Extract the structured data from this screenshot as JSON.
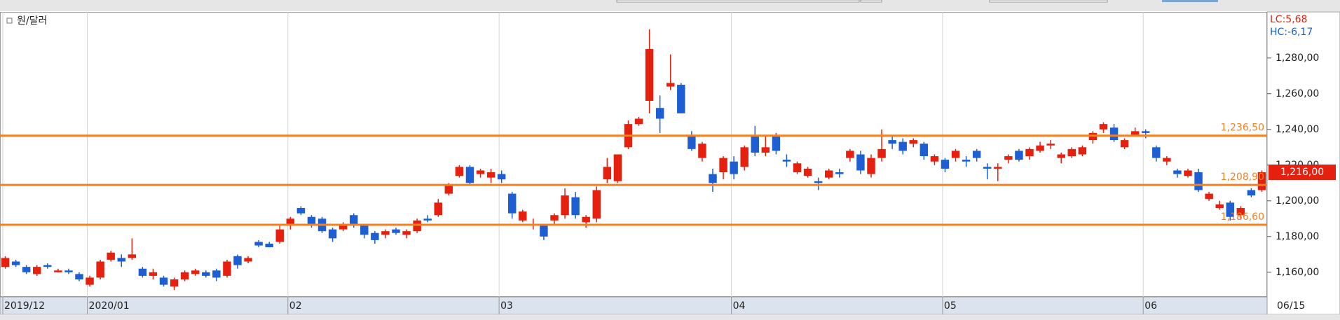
{
  "chart_data": {
    "type": "candlestick",
    "title": "원/달러",
    "lc_label": "LC:5,68",
    "hc_label": "HC:-6,17",
    "cursor_date": "06/15",
    "up_color": "#e5200f",
    "down_color": "#1d5fd2",
    "line_color": "#f5801f",
    "vgrid": true,
    "categories": [
      "2019/12",
      null,
      null,
      null,
      null,
      null,
      null,
      null,
      "2020/01",
      null,
      null,
      null,
      null,
      null,
      null,
      null,
      null,
      null,
      null,
      null,
      null,
      null,
      null,
      null,
      null,
      null,
      null,
      "02",
      null,
      null,
      null,
      null,
      null,
      null,
      null,
      null,
      null,
      null,
      null,
      null,
      null,
      null,
      null,
      null,
      null,
      null,
      null,
      "03",
      null,
      null,
      null,
      null,
      null,
      null,
      null,
      null,
      null,
      null,
      null,
      null,
      null,
      null,
      null,
      null,
      null,
      null,
      null,
      null,
      null,
      "04",
      null,
      null,
      null,
      null,
      null,
      null,
      null,
      null,
      null,
      null,
      null,
      null,
      null,
      null,
      null,
      null,
      null,
      null,
      null,
      "05",
      null,
      null,
      null,
      null,
      null,
      null,
      null,
      null,
      null,
      null,
      null,
      null,
      null,
      null,
      null,
      null,
      null,
      null,
      "06",
      null,
      null,
      null,
      null,
      null,
      null,
      null,
      null,
      null,
      null,
      null
    ],
    "open": [
      1163,
      1166,
      1163,
      1159,
      1164,
      1160,
      1161,
      1159,
      1153,
      1157,
      1167,
      1168,
      1168,
      1162,
      1158,
      1157,
      1152,
      1156,
      1159,
      1160,
      1161,
      1158,
      1169,
      1166,
      1177,
      1176,
      1177,
      1186,
      1196,
      1191,
      1190,
      1184,
      1184,
      1192,
      1186,
      1182,
      1181,
      1184,
      1181,
      1183,
      1190,
      1192,
      1204,
      1214,
      1219,
      1215,
      1213,
      1215,
      1204,
      1189,
      1186,
      1186,
      1189,
      1192,
      1202,
      1188,
      1190,
      1212,
      1211,
      1230,
      1243,
      1256,
      1252,
      1264,
      1265,
      1237,
      1224,
      1215,
      1216,
      1222,
      1219,
      1236,
      1227,
      1236,
      1223,
      1216,
      1214,
      1211,
      1213,
      1216,
      1224,
      1226,
      1215,
      1224,
      1234,
      1233,
      1232,
      1232,
      1222,
      1223,
      1224,
      1223,
      1228,
      1219,
      1218,
      1223,
      1228,
      1225,
      1228,
      1231,
      1224,
      1225,
      1226,
      1234,
      1240,
      1241,
      1230,
      1237,
      1239,
      1230,
      1222,
      1217,
      1214,
      1216,
      1201,
      1196,
      1199,
      1192,
      1206,
      1206
    ],
    "high": [
      1169,
      1167,
      1164,
      1164,
      1165,
      1162,
      1162,
      1160,
      1158,
      1167,
      1172,
      1170,
      1179,
      1163,
      1162,
      1158,
      1157,
      1161,
      1162,
      1161,
      1162,
      1167,
      1170,
      1169,
      1178,
      1177,
      1186,
      1191,
      1197,
      1192,
      1191,
      1185,
      1188,
      1193,
      1187,
      1183,
      1184,
      1185,
      1184,
      1190,
      1192,
      1201,
      1210,
      1220,
      1220,
      1218,
      1218,
      1217,
      1205,
      1195,
      1190,
      1187,
      1193,
      1207,
      1205,
      1192,
      1208,
      1224,
      1226,
      1245,
      1247,
      1296,
      1259,
      1282,
      1266,
      1239,
      1233,
      1218,
      1225,
      1225,
      1231,
      1242,
      1236,
      1238,
      1226,
      1222,
      1219,
      1213,
      1218,
      1218,
      1229,
      1228,
      1226,
      1240,
      1237,
      1235,
      1235,
      1233,
      1226,
      1224,
      1229,
      1225,
      1229,
      1221,
      1221,
      1226,
      1229,
      1230,
      1233,
      1234,
      1227,
      1230,
      1231,
      1239,
      1244,
      1243,
      1235,
      1241,
      1240,
      1231,
      1225,
      1218,
      1218,
      1218,
      1205,
      1200,
      1200,
      1197,
      1207,
      1217
    ],
    "low": [
      1162,
      1163,
      1159,
      1158,
      1162,
      1160,
      1159,
      1155,
      1152,
      1156,
      1166,
      1163,
      1167,
      1157,
      1156,
      1152,
      1150,
      1155,
      1158,
      1157,
      1155,
      1157,
      1162,
      1165,
      1174,
      1174,
      1176,
      1184,
      1192,
      1185,
      1182,
      1177,
      1183,
      1185,
      1179,
      1176,
      1179,
      1181,
      1179,
      1182,
      1188,
      1191,
      1203,
      1213,
      1209,
      1213,
      1210,
      1210,
      1190,
      1188,
      1184,
      1178,
      1187,
      1190,
      1190,
      1185,
      1188,
      1210,
      1210,
      1229,
      1242,
      1249,
      1238,
      1262,
      1249,
      1228,
      1222,
      1205,
      1212,
      1212,
      1217,
      1225,
      1225,
      1226,
      1219,
      1215,
      1213,
      1206,
      1212,
      1213,
      1222,
      1215,
      1213,
      1222,
      1229,
      1226,
      1230,
      1223,
      1220,
      1216,
      1222,
      1219,
      1222,
      1212,
      1211,
      1221,
      1222,
      1223,
      1227,
      1229,
      1221,
      1224,
      1225,
      1232,
      1238,
      1233,
      1229,
      1236,
      1235,
      1222,
      1220,
      1213,
      1213,
      1205,
      1200,
      1195,
      1189,
      1190,
      1202,
      1205
    ],
    "close": [
      1168,
      1164,
      1160,
      1163,
      1163,
      1161,
      1160,
      1156,
      1157,
      1166,
      1171,
      1166,
      1170,
      1158,
      1160,
      1153,
      1156,
      1160,
      1161,
      1158,
      1157,
      1166,
      1164,
      1168,
      1175,
      1174,
      1184,
      1190,
      1193,
      1187,
      1183,
      1179,
      1187,
      1187,
      1181,
      1178,
      1183,
      1182,
      1183,
      1189,
      1189,
      1199,
      1209,
      1219,
      1210,
      1217,
      1216,
      1212,
      1193,
      1194,
      1187,
      1180,
      1192,
      1203,
      1192,
      1191,
      1206,
      1219,
      1226,
      1243,
      1246,
      1285,
      1246,
      1266,
      1249,
      1229,
      1232,
      1210,
      1224,
      1215,
      1230,
      1227,
      1230,
      1228,
      1222,
      1221,
      1218,
      1210,
      1217,
      1215,
      1228,
      1217,
      1224,
      1229,
      1232,
      1228,
      1234,
      1225,
      1225,
      1218,
      1228,
      1222,
      1224,
      1218,
      1219,
      1225,
      1223,
      1229,
      1231,
      1232,
      1226,
      1229,
      1230,
      1238,
      1243,
      1234,
      1234,
      1239,
      1238,
      1224,
      1224,
      1215,
      1217,
      1206,
      1204,
      1198,
      1191,
      1196,
      1203,
      1216
    ],
    "ylim": [
      1146.2,
      1305.8
    ],
    "yticks": [
      {
        "value": 1160,
        "label": "1,160,00"
      },
      {
        "value": 1180,
        "label": "1,180,00"
      },
      {
        "value": 1200,
        "label": "1,200,00"
      },
      {
        "value": 1220,
        "label": "1,220,00"
      },
      {
        "value": 1240,
        "label": "1,240,00"
      },
      {
        "value": 1260,
        "label": "1,260,00"
      },
      {
        "value": 1280,
        "label": "1,280,00"
      }
    ],
    "hlines": [
      {
        "value": 1236.5,
        "label": "1,236,50"
      },
      {
        "value": 1208.9,
        "label": "1,208,90"
      },
      {
        "value": 1186.6,
        "label": "1,186,60"
      }
    ],
    "last_price_label": "1,216,00"
  }
}
